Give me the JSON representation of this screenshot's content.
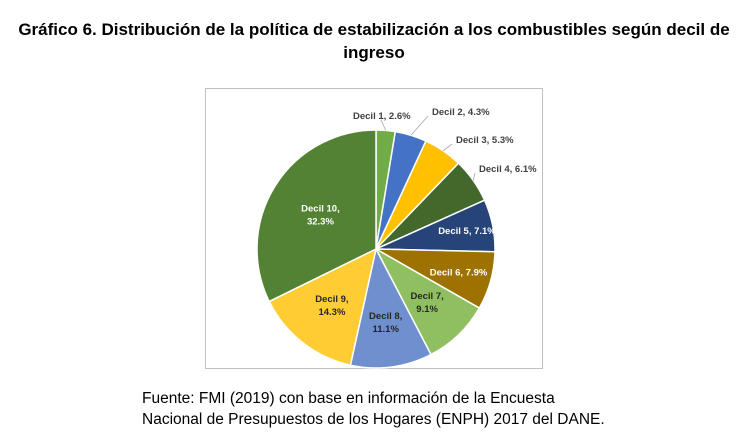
{
  "title_line1": "Gráfico 6. Distribución de la política de estabilización a los combustibles según decil de",
  "title_line2": "ingreso",
  "source_line1": "Fuente: FMI (2019) con base en información de la Encuesta",
  "source_line2": "Nacional de Presupuestos de los Hogares (ENPH) 2017 del DANE.",
  "chart_data": {
    "type": "pie",
    "title": "Gráfico 6. Distribución de la política de estabilización a los combustibles según decil de ingreso",
    "unit": "%",
    "categories": [
      "Decil 1",
      "Decil 2",
      "Decil 3",
      "Decil 4",
      "Decil 5",
      "Decil 6",
      "Decil 7",
      "Decil 8",
      "Decil 9",
      "Decil 10"
    ],
    "values": [
      2.6,
      4.3,
      5.3,
      6.1,
      7.1,
      7.9,
      9.1,
      11.1,
      14.3,
      32.3
    ],
    "labels": [
      "Decil 1, 2.6%",
      "Decil 2, 4.3%",
      "Decil 3, 5.3%",
      "Decil 4, 6.1%",
      "Decil 5, 7.1%",
      "Decil 6, 7.9%",
      "Decil 7,|9.1%",
      "Decil 8,|11.1%",
      "Decil 9,|14.3%",
      "Decil 10,|32.3%"
    ],
    "colors": [
      "#70ad47",
      "#4472c4",
      "#ffc000",
      "#43682b",
      "#264478",
      "#9e7200",
      "#8fbf60",
      "#6f8fcf",
      "#ffcd33",
      "#548235"
    ],
    "label_colors": [
      "#404040",
      "#404040",
      "#404040",
      "#404040",
      "#ffffff",
      "#ffffff",
      "#262626",
      "#262626",
      "#262626",
      "#ffffff"
    ],
    "legend": "none"
  }
}
